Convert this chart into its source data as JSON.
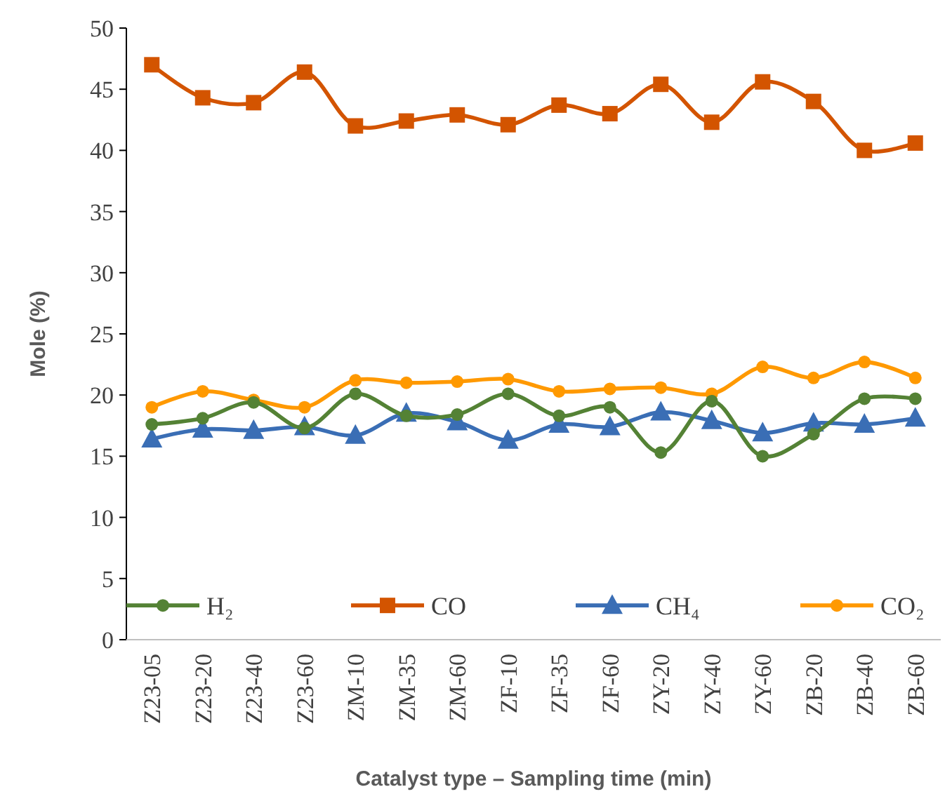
{
  "chart_data": {
    "type": "line",
    "xlabel": "Catalyst type – Sampling time (min)",
    "ylabel": "Mole (%)",
    "categories": [
      "Z23-05",
      "Z23-20",
      "Z23-40",
      "Z23-60",
      "ZM-10",
      "ZM-35",
      "ZM-60",
      "ZF-10",
      "ZF-35",
      "ZF-60",
      "ZY-20",
      "ZY-40",
      "ZY-60",
      "ZB-20",
      "ZB-40",
      "ZB-60"
    ],
    "series": [
      {
        "name": "H₂",
        "color": "#548235",
        "marker": "circle",
        "values": [
          17.6,
          18.1,
          19.4,
          17.3,
          20.1,
          18.3,
          18.4,
          20.1,
          18.3,
          19.0,
          15.3,
          19.5,
          15.0,
          16.8,
          19.7,
          19.7
        ]
      },
      {
        "name": "CO",
        "color": "#d35400",
        "marker": "square",
        "values": [
          47.0,
          44.3,
          43.9,
          46.4,
          42.0,
          42.4,
          42.9,
          42.1,
          43.7,
          43.0,
          45.4,
          42.3,
          45.6,
          44.0,
          40.0,
          40.6
        ]
      },
      {
        "name": "CH₄",
        "color": "#3a6eb5",
        "marker": "triangle",
        "values": [
          16.4,
          17.2,
          17.1,
          17.4,
          16.7,
          18.5,
          17.8,
          16.3,
          17.6,
          17.4,
          18.6,
          17.9,
          16.9,
          17.7,
          17.6,
          18.1
        ]
      },
      {
        "name": "CO₂",
        "color": "#ff9900",
        "marker": "circle",
        "values": [
          19.0,
          20.3,
          19.6,
          19.0,
          21.2,
          21.0,
          21.1,
          21.3,
          20.3,
          20.5,
          20.6,
          20.1,
          22.3,
          21.4,
          22.7,
          21.4
        ]
      }
    ],
    "ylim": [
      0,
      50
    ],
    "yticks": [
      0,
      5,
      10,
      15,
      20,
      25,
      30,
      35,
      40,
      45,
      50
    ],
    "grid": false,
    "legend": "bottom",
    "line_style": "solid"
  }
}
